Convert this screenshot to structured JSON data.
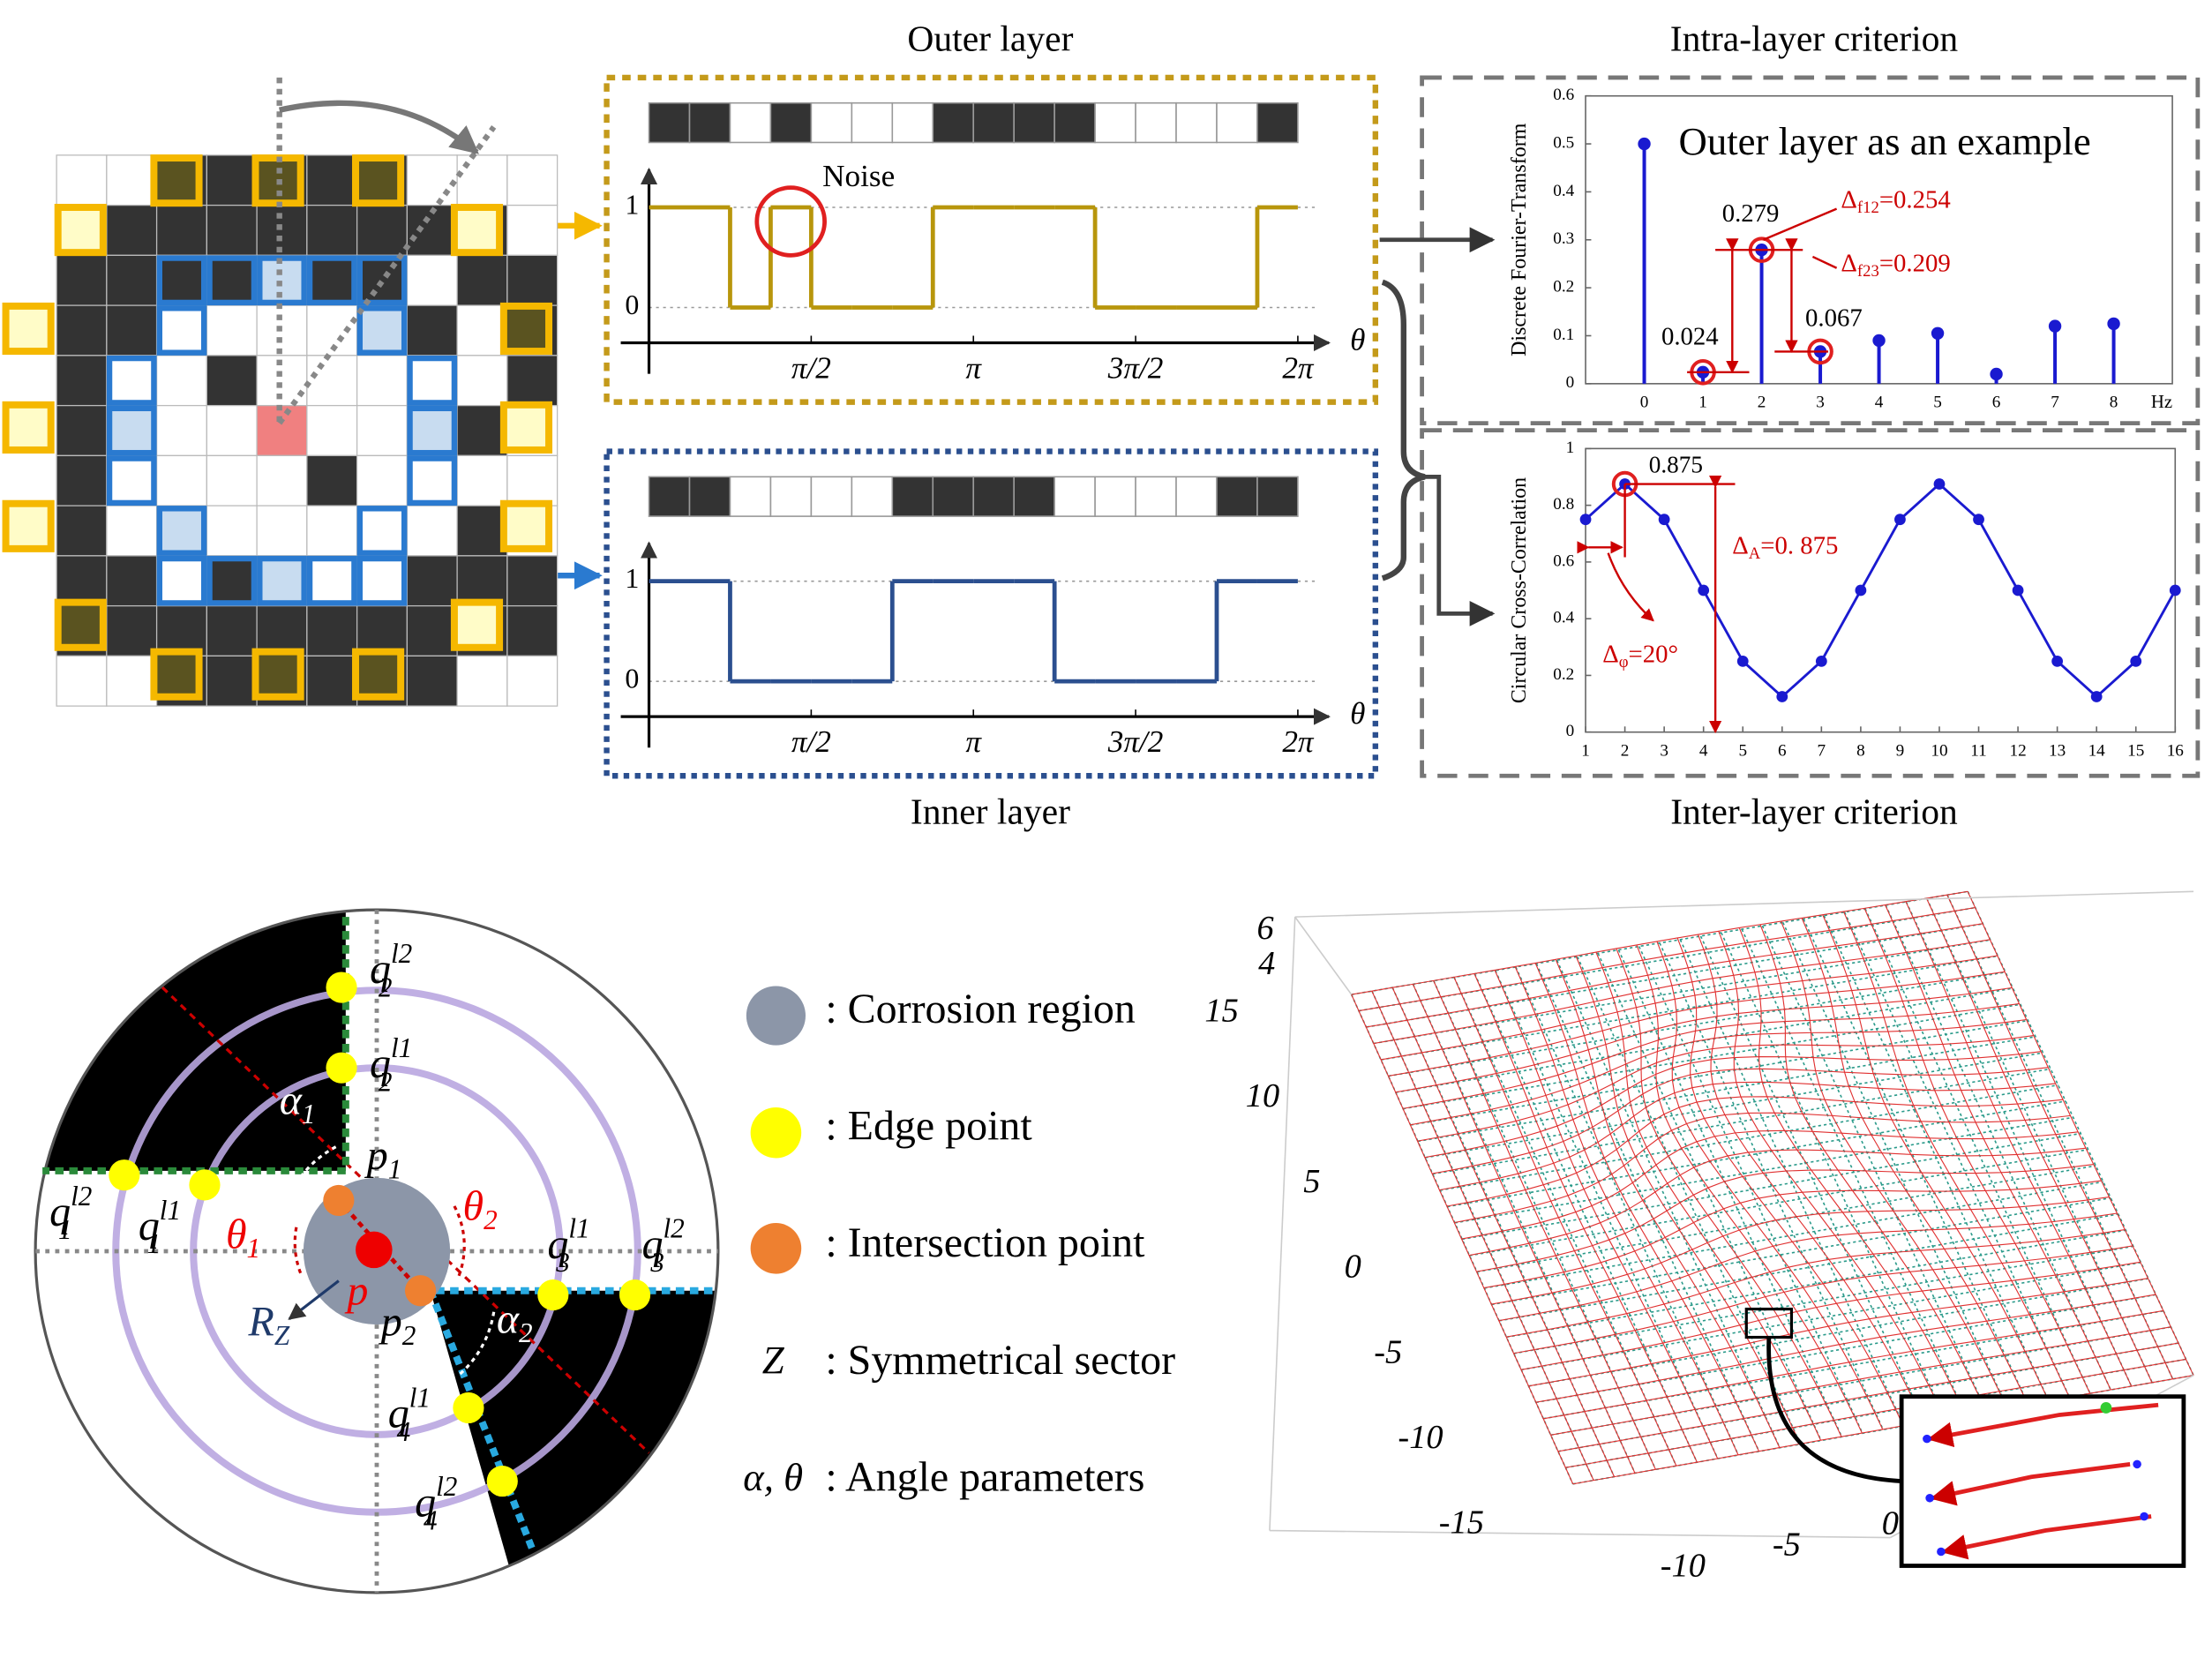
{
  "outer_layer": {
    "title": "Outer layer",
    "noise": "Noise",
    "color": "#b8960c",
    "bits": [
      1,
      1,
      0,
      1,
      0,
      0,
      0,
      1,
      1,
      1,
      1,
      0,
      0,
      0,
      0,
      1
    ],
    "ylim": [
      0,
      1
    ],
    "yticks": [
      0,
      1
    ],
    "xlim": [
      0,
      6.2832
    ],
    "xticks": [
      {
        "value": 1.5708,
        "label": "π/2"
      },
      {
        "value": 3.1416,
        "label": "π"
      },
      {
        "value": 4.7124,
        "label": "3π/2"
      },
      {
        "value": 6.2832,
        "label": "2π"
      }
    ],
    "xlabel": "θ"
  },
  "inner_layer": {
    "title": "Inner layer",
    "color": "#2b4f8f",
    "bits": [
      1,
      1,
      0,
      0,
      0,
      0,
      1,
      1,
      1,
      1,
      0,
      0,
      0,
      0,
      1,
      1
    ],
    "ylim": [
      0,
      1
    ],
    "yticks": [
      0,
      1
    ],
    "xlim": [
      0,
      6.2832
    ],
    "xticks": [
      {
        "value": 1.5708,
        "label": "π/2"
      },
      {
        "value": 3.1416,
        "label": "π"
      },
      {
        "value": 4.7124,
        "label": "3π/2"
      },
      {
        "value": 6.2832,
        "label": "2π"
      }
    ],
    "xlabel": "θ"
  },
  "chart_data": [
    {
      "type": "stem",
      "section": "Intra-layer criterion",
      "ylabel": "Discrete Fourier-Transform",
      "color": "#1a1ad0",
      "x": [
        0,
        1,
        2,
        3,
        4,
        5,
        6,
        7,
        8
      ],
      "values": [
        0.5,
        0.024,
        0.279,
        0.067,
        0.09,
        0.105,
        0.02,
        0.12,
        0.125
      ],
      "xlim": [
        -1,
        9
      ],
      "ylim": [
        0,
        0.6
      ],
      "xticks": [
        0,
        1,
        2,
        3,
        4,
        5,
        6,
        7,
        8
      ],
      "yticks": [
        0,
        0.1,
        0.2,
        0.3,
        0.4,
        0.5,
        0.6
      ],
      "x_unit": "Hz",
      "note": "Outer layer as an example",
      "delta_12": {
        "base": "Δ",
        "sub": "f12",
        "rest": "=0.254"
      },
      "delta_23": {
        "base": "Δ",
        "sub": "f23",
        "rest": "=0.209"
      }
    },
    {
      "type": "line",
      "section": "Inter-layer criterion",
      "ylabel": "Circular Cross-Correlation",
      "color": "#1a1ad0",
      "x": [
        1,
        2,
        3,
        4,
        5,
        6,
        7,
        8,
        9,
        10,
        11,
        12,
        13,
        14,
        15,
        16
      ],
      "values": [
        0.75,
        0.875,
        0.75,
        0.5,
        0.25,
        0.125,
        0.25,
        0.5,
        0.75,
        0.875,
        0.75,
        0.5,
        0.25,
        0.125,
        0.25,
        0.5
      ],
      "xlim": [
        1,
        16
      ],
      "ylim": [
        0,
        1
      ],
      "xticks": [
        1,
        2,
        3,
        4,
        5,
        6,
        7,
        8,
        9,
        10,
        11,
        12,
        13,
        14,
        15,
        16
      ],
      "yticks": [
        0,
        0.2,
        0.4,
        0.6,
        0.8,
        1
      ],
      "delta_a": {
        "base": "Δ",
        "sub": "A",
        "rest": "=0. 875"
      },
      "delta_phi": {
        "base": "Δ",
        "sub": "φ",
        "rest": "=20°"
      }
    }
  ],
  "circle_diagram": {
    "labels": [
      {
        "base": "q",
        "sub": "2",
        "sup": "l2"
      },
      {
        "base": "q",
        "sub": "2",
        "sup": "l1"
      },
      {
        "base": "q",
        "sub": "1",
        "sup": "l2"
      },
      {
        "base": "q",
        "sub": "1",
        "sup": "l1"
      },
      {
        "base": "q",
        "sub": "3",
        "sup": "l1"
      },
      {
        "base": "q",
        "sub": "3",
        "sup": "l2"
      },
      {
        "base": "q",
        "sub": "4",
        "sup": "l1"
      },
      {
        "base": "q",
        "sub": "4",
        "sup": "l2"
      },
      {
        "base": "p",
        "sub": "1"
      },
      {
        "base": "p",
        "sub": "2"
      },
      {
        "base": "p"
      },
      {
        "base": "α",
        "sub": "1"
      },
      {
        "base": "α",
        "sub": "2"
      },
      {
        "base": "θ",
        "sub": "1"
      },
      {
        "base": "θ",
        "sub": "2"
      },
      {
        "base": "R",
        "sub": "Z"
      }
    ]
  },
  "legend": [
    {
      "label": ": Corrosion region"
    },
    {
      "label": ": Edge point"
    },
    {
      "label": ": Intersection point"
    },
    {
      "symbol": "Z",
      "label": ": Symmetrical sector"
    },
    {
      "symbol": "α, θ",
      "label": ": Angle parameters"
    }
  ],
  "surface": {
    "z_ticks": [
      6,
      4
    ],
    "y_ticks": [
      15,
      10,
      5,
      0,
      -5,
      -10,
      -15
    ],
    "x_ticks": [
      -10,
      -5,
      0
    ]
  }
}
